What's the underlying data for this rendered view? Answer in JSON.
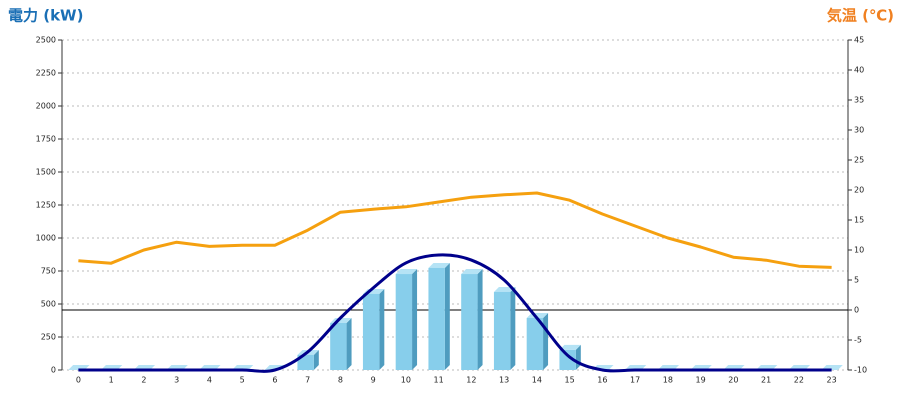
{
  "chart_data": {
    "type": "combo",
    "y_label": "電力 (kW)",
    "y2_label": "気温 (℃)",
    "categories": [
      "0",
      "1",
      "2",
      "3",
      "4",
      "5",
      "6",
      "7",
      "8",
      "9",
      "10",
      "11",
      "12",
      "13",
      "14",
      "15",
      "16",
      "17",
      "18",
      "19",
      "20",
      "21",
      "22",
      "23"
    ],
    "ylim": [
      0,
      2500
    ],
    "yticks": [
      0,
      250,
      500,
      750,
      1000,
      1250,
      1500,
      1750,
      2000,
      2250,
      2500
    ],
    "y2lim": [
      -10,
      45
    ],
    "y2ticks": [
      -10,
      -5,
      0,
      5,
      10,
      15,
      20,
      25,
      30,
      35,
      40,
      45
    ],
    "grid": true,
    "y2_reference": 0,
    "series": [
      {
        "type": "bar",
        "color": "#87ceeb",
        "values": [
          0,
          0,
          0,
          0,
          0,
          0,
          0,
          114,
          356,
          576,
          727,
          773,
          727,
          591,
          394,
          152,
          0,
          0,
          0,
          0,
          0,
          0,
          0,
          0
        ]
      },
      {
        "type": "line",
        "color": "#00008b",
        "values": [
          0,
          0,
          0,
          0,
          0,
          0,
          0,
          136,
          394,
          621,
          811,
          871,
          833,
          682,
          394,
          98,
          0,
          0,
          0,
          0,
          0,
          0,
          0,
          0
        ]
      },
      {
        "type": "line",
        "axis": "y2",
        "color": "#f5a00f",
        "values": [
          8.2,
          7.8,
          10,
          11.3,
          10.6,
          10.8,
          10.8,
          13.3,
          16.3,
          16.8,
          17.2,
          18,
          18.8,
          19.2,
          19.5,
          18.3,
          16,
          14,
          12,
          10.5,
          8.8,
          8.3,
          7.3,
          7.1
        ]
      }
    ]
  }
}
